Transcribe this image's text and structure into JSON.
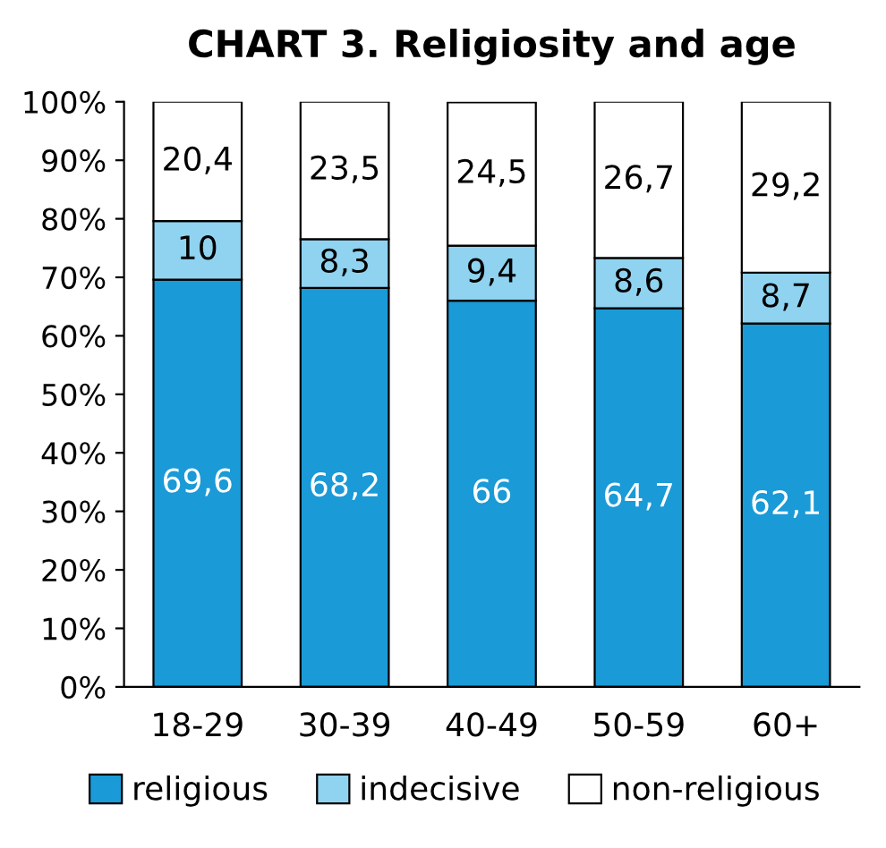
{
  "chart_data": {
    "type": "bar",
    "title": "CHART 3. Religiosity and age",
    "stacked": true,
    "categories": [
      "18-29",
      "30-39",
      "40-49",
      "50-59",
      "60+"
    ],
    "series": [
      {
        "name": "religious",
        "color": "#1a9ad6",
        "values": [
          69.6,
          68.2,
          66,
          64.7,
          62.1
        ],
        "value_labels": [
          "69,6",
          "68,2",
          "66",
          "64,7",
          "62,1"
        ]
      },
      {
        "name": "indecisive",
        "color": "#8fd3f0",
        "values": [
          10,
          8.3,
          9.4,
          8.6,
          8.7
        ],
        "value_labels": [
          "10",
          "8,3",
          "9,4",
          "8,6",
          "8,7"
        ]
      },
      {
        "name": "non-religious",
        "color": "#ffffff",
        "values": [
          20.4,
          23.5,
          24.5,
          26.7,
          29.2
        ],
        "value_labels": [
          "20,4",
          "23,5",
          "24,5",
          "26,7",
          "29,2"
        ]
      }
    ],
    "ylim": [
      0,
      100
    ],
    "yticks": [
      {
        "value": 0,
        "label": "0%"
      },
      {
        "value": 10,
        "label": "10%"
      },
      {
        "value": 20,
        "label": "20%"
      },
      {
        "value": 30,
        "label": "30%"
      },
      {
        "value": 40,
        "label": "40%"
      },
      {
        "value": 50,
        "label": "50%"
      },
      {
        "value": 60,
        "label": "60%"
      },
      {
        "value": 70,
        "label": "70%"
      },
      {
        "value": 80,
        "label": "80%"
      },
      {
        "value": 90,
        "label": "90%"
      },
      {
        "value": 100,
        "label": "100%"
      }
    ],
    "grid": false,
    "legend": "bottom"
  }
}
